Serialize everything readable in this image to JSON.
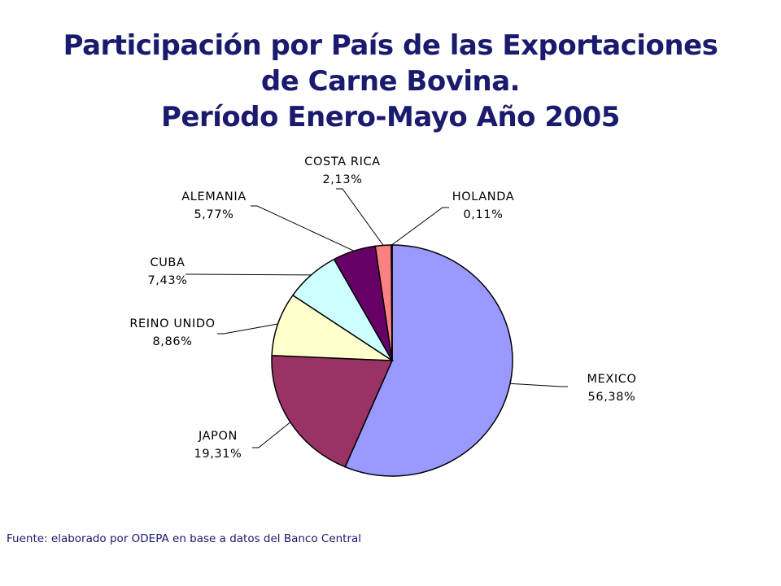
{
  "title": {
    "line1": "Participación por País de las Exportaciones",
    "line2": "de Carne Bovina.",
    "line3": "Período Enero-Mayo Año 2005"
  },
  "footer": "Fuente: elaborado por ODEPA en base a datos del Banco Central",
  "chart_data": {
    "type": "pie",
    "slices": [
      {
        "name": "MEXICO",
        "label": "56,38%",
        "value": 56.38,
        "color": "#9999ff"
      },
      {
        "name": "JAPON",
        "label": "19,31%",
        "value": 19.31,
        "color": "#993366"
      },
      {
        "name": "REINO UNIDO",
        "label": "8,86%",
        "value": 8.86,
        "color": "#ffffcc"
      },
      {
        "name": "CUBA",
        "label": "7,43%",
        "value": 7.43,
        "color": "#ccffff"
      },
      {
        "name": "ALEMANIA",
        "label": "5,77%",
        "value": 5.77,
        "color": "#660066"
      },
      {
        "name": "COSTA RICA",
        "label": "2,13%",
        "value": 2.13,
        "color": "#ff8080"
      },
      {
        "name": "HOLANDA",
        "label": "0,11%",
        "value": 0.11,
        "color": "#0066cc"
      }
    ],
    "start": "12 o'clock",
    "direction": "clockwise"
  }
}
